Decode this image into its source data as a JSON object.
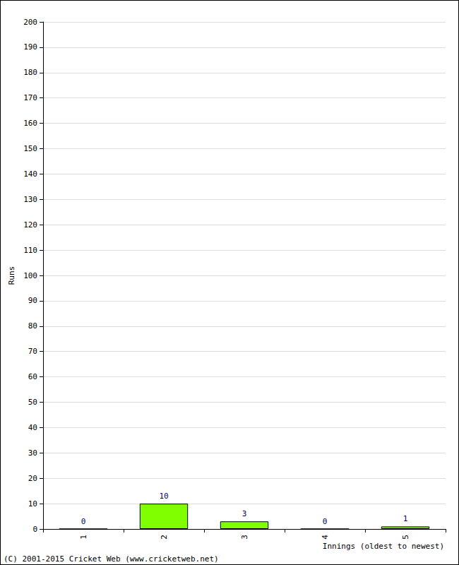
{
  "chart_data": {
    "type": "bar",
    "x_label": "Innings (oldest to newest)",
    "y_label": "Runs",
    "categories": [
      "1",
      "2",
      "3",
      "4",
      "5"
    ],
    "values": [
      0,
      10,
      3,
      0,
      1
    ],
    "color": "#80ff00",
    "ylim": [
      0,
      200
    ],
    "yticks": [
      0,
      10,
      20,
      30,
      40,
      50,
      60,
      70,
      80,
      90,
      100,
      110,
      120,
      130,
      140,
      150,
      160,
      170,
      180,
      190,
      200
    ],
    "grid": true,
    "data_labels": true,
    "annotations": [
      "(C) 2001-2015 Cricket Web (www.cricketweb.net)"
    ]
  }
}
